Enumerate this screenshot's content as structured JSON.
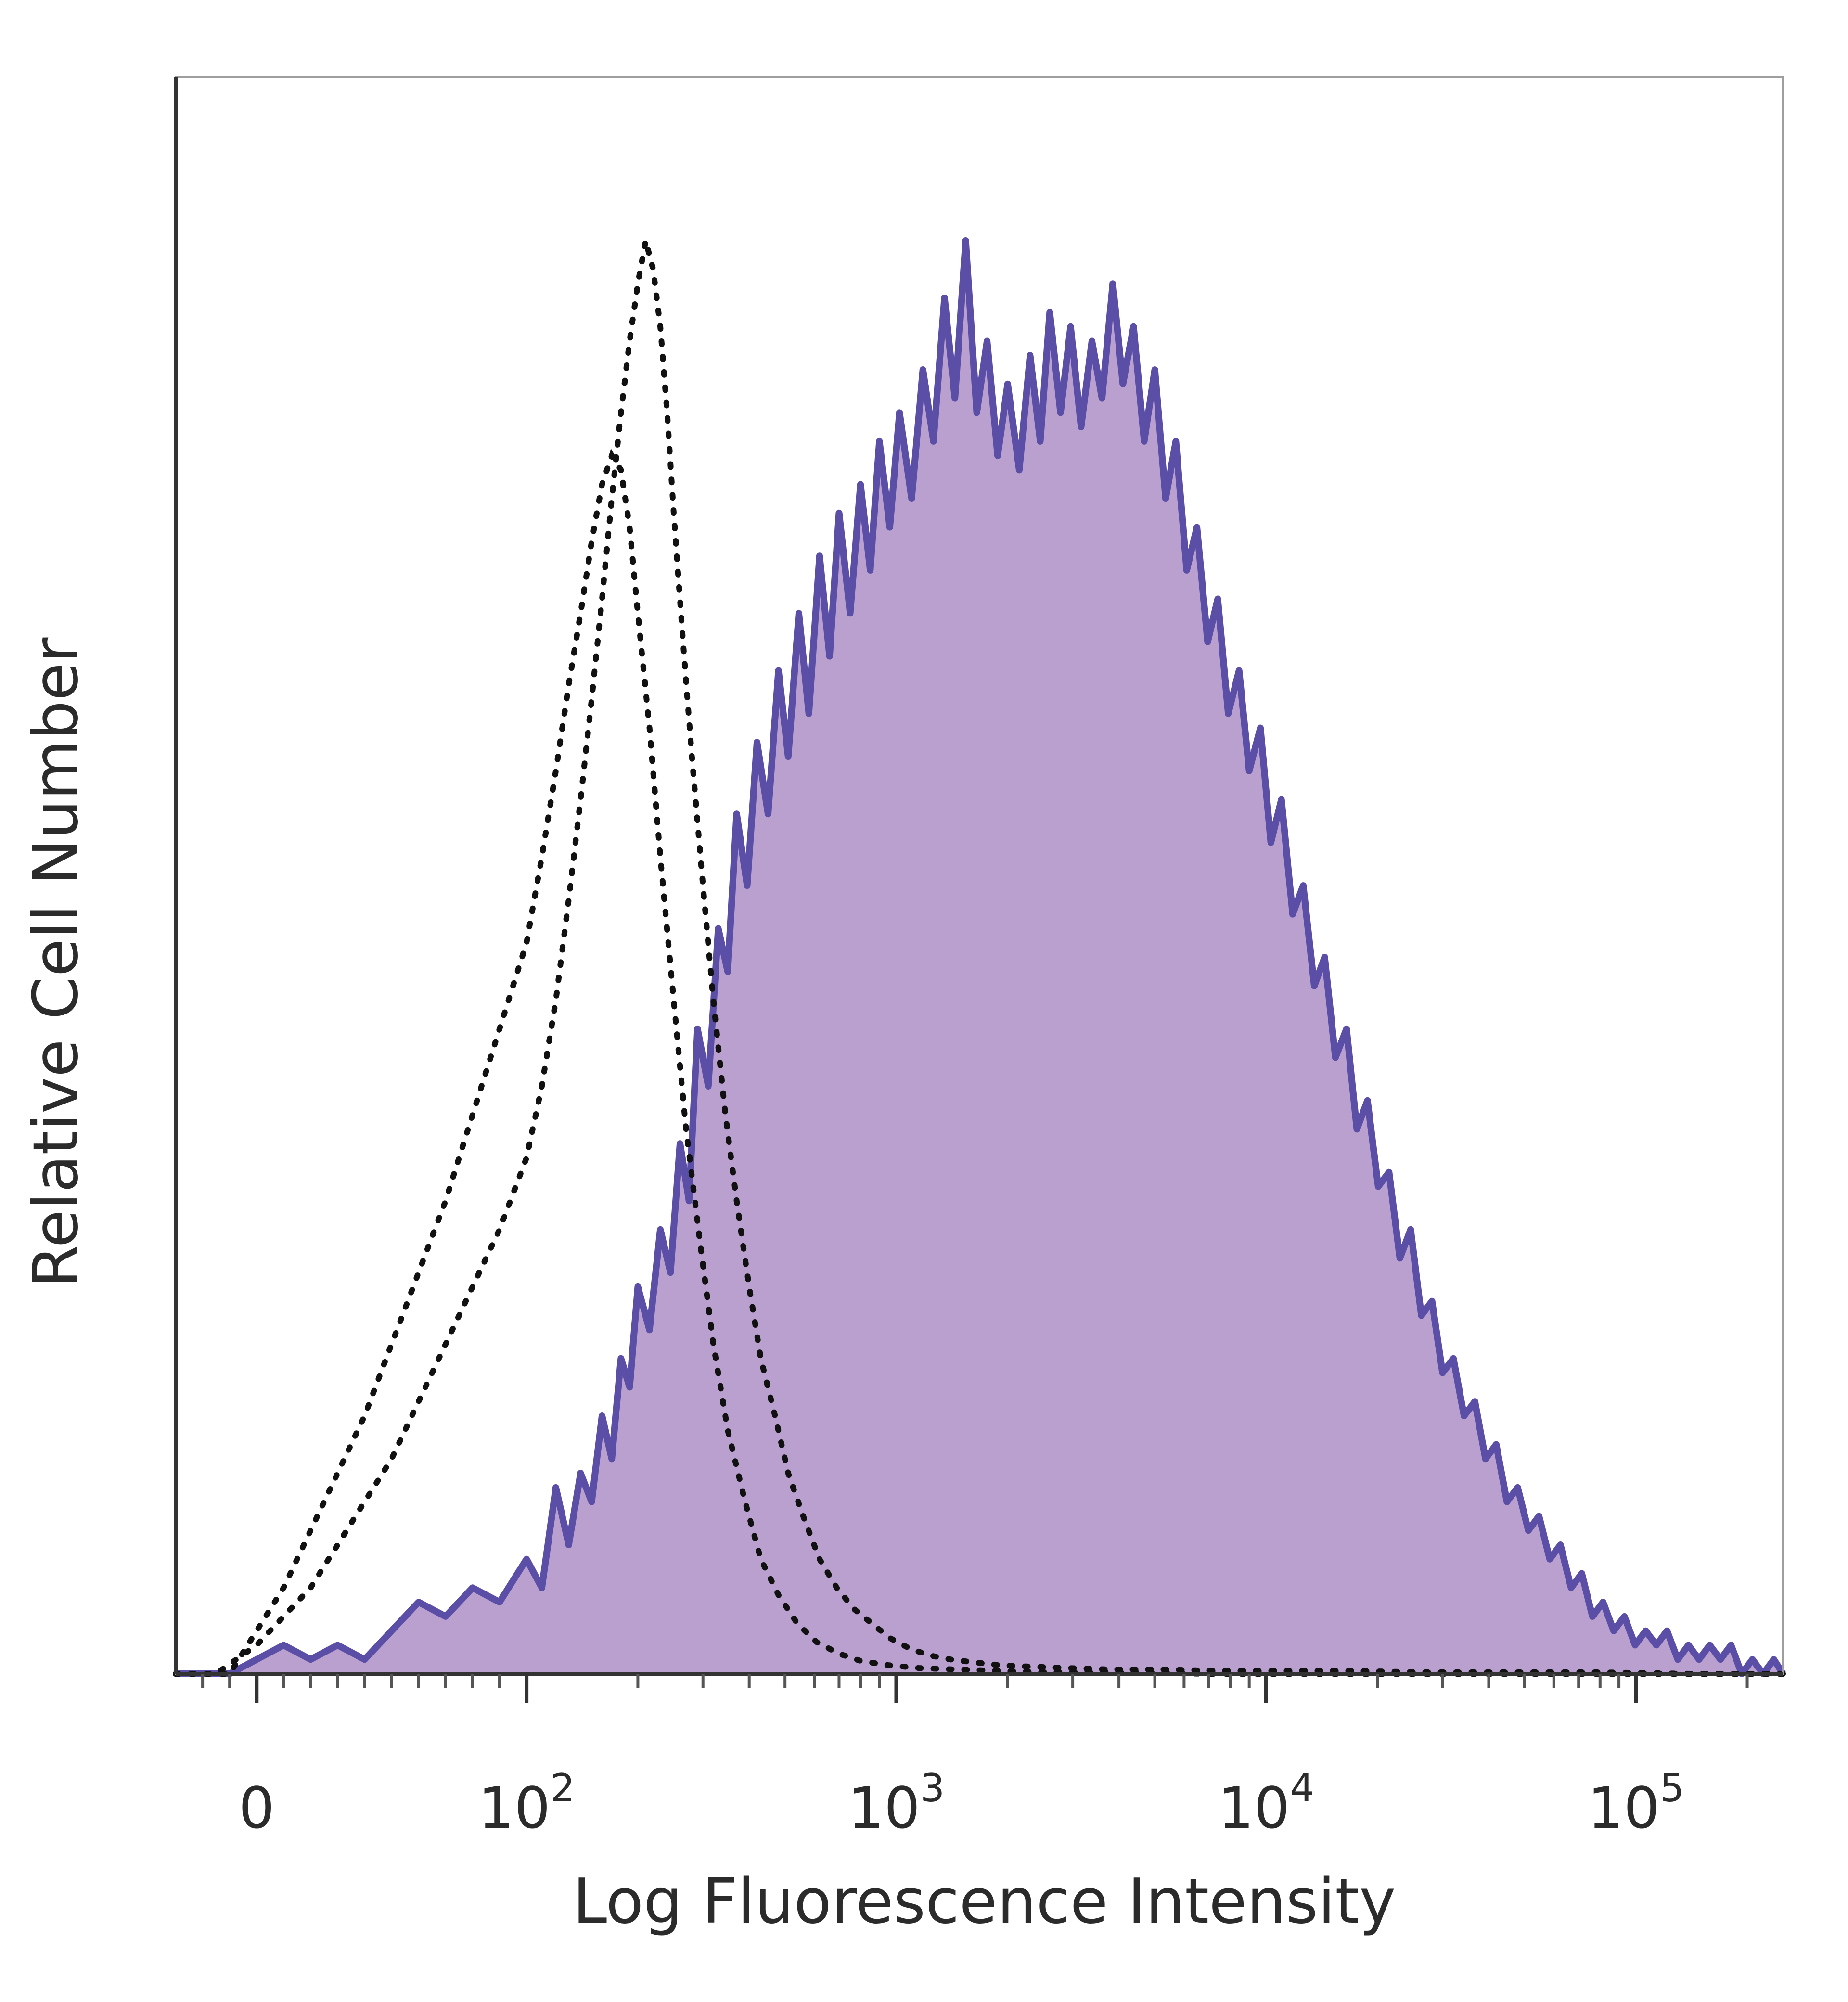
{
  "chart_data": {
    "type": "area",
    "title": "",
    "xlabel": "Log Fluorescence Intensity",
    "ylabel": "Relative Cell Number",
    "x_scale": "biexponential (log)",
    "xlim": [
      -30,
      250000
    ],
    "ylim": [
      0,
      1
    ],
    "x_tick_labels": [
      {
        "value": 0,
        "base": "0",
        "exp": ""
      },
      {
        "value": 100,
        "base": "10",
        "exp": "2"
      },
      {
        "value": 1000,
        "base": "10",
        "exp": "3"
      },
      {
        "value": 10000,
        "base": "10",
        "exp": "4"
      },
      {
        "value": 100000,
        "base": "10",
        "exp": "5"
      }
    ],
    "grid": false,
    "legend": "none",
    "series": [
      {
        "style": "filled",
        "line_color": "#5a4ea6",
        "fill_color": "#b9a0cf",
        "points": [
          [
            -30,
            0.0
          ],
          [
            -10,
            0.0
          ],
          [
            0,
            0.01
          ],
          [
            10,
            0.02
          ],
          [
            20,
            0.01
          ],
          [
            30,
            0.02
          ],
          [
            40,
            0.01
          ],
          [
            50,
            0.03
          ],
          [
            60,
            0.05
          ],
          [
            70,
            0.04
          ],
          [
            80,
            0.06
          ],
          [
            90,
            0.05
          ],
          [
            100,
            0.08
          ],
          [
            110,
            0.06
          ],
          [
            120,
            0.13
          ],
          [
            130,
            0.09
          ],
          [
            140,
            0.14
          ],
          [
            150,
            0.12
          ],
          [
            160,
            0.18
          ],
          [
            170,
            0.15
          ],
          [
            180,
            0.22
          ],
          [
            190,
            0.2
          ],
          [
            200,
            0.27
          ],
          [
            215,
            0.24
          ],
          [
            230,
            0.31
          ],
          [
            245,
            0.28
          ],
          [
            260,
            0.37
          ],
          [
            275,
            0.33
          ],
          [
            290,
            0.45
          ],
          [
            310,
            0.41
          ],
          [
            330,
            0.52
          ],
          [
            350,
            0.49
          ],
          [
            370,
            0.6
          ],
          [
            395,
            0.55
          ],
          [
            420,
            0.65
          ],
          [
            450,
            0.6
          ],
          [
            480,
            0.7
          ],
          [
            510,
            0.64
          ],
          [
            545,
            0.74
          ],
          [
            580,
            0.67
          ],
          [
            620,
            0.78
          ],
          [
            660,
            0.71
          ],
          [
            700,
            0.81
          ],
          [
            750,
            0.74
          ],
          [
            800,
            0.83
          ],
          [
            850,
            0.77
          ],
          [
            900,
            0.86
          ],
          [
            960,
            0.8
          ],
          [
            1020,
            0.88
          ],
          [
            1100,
            0.82
          ],
          [
            1180,
            0.91
          ],
          [
            1260,
            0.86
          ],
          [
            1350,
            0.96
          ],
          [
            1440,
            0.89
          ],
          [
            1540,
            1.0
          ],
          [
            1650,
            0.88
          ],
          [
            1760,
            0.93
          ],
          [
            1880,
            0.85
          ],
          [
            2000,
            0.9
          ],
          [
            2150,
            0.84
          ],
          [
            2300,
            0.92
          ],
          [
            2450,
            0.86
          ],
          [
            2600,
            0.95
          ],
          [
            2780,
            0.88
          ],
          [
            2960,
            0.94
          ],
          [
            3160,
            0.87
          ],
          [
            3380,
            0.93
          ],
          [
            3600,
            0.89
          ],
          [
            3850,
            0.97
          ],
          [
            4100,
            0.9
          ],
          [
            4380,
            0.94
          ],
          [
            4680,
            0.86
          ],
          [
            5000,
            0.91
          ],
          [
            5350,
            0.82
          ],
          [
            5700,
            0.86
          ],
          [
            6100,
            0.77
          ],
          [
            6500,
            0.8
          ],
          [
            6950,
            0.72
          ],
          [
            7400,
            0.75
          ],
          [
            7900,
            0.67
          ],
          [
            8450,
            0.7
          ],
          [
            9000,
            0.63
          ],
          [
            9650,
            0.66
          ],
          [
            10300,
            0.58
          ],
          [
            11000,
            0.61
          ],
          [
            11800,
            0.53
          ],
          [
            12600,
            0.55
          ],
          [
            13500,
            0.48
          ],
          [
            14400,
            0.5
          ],
          [
            15400,
            0.43
          ],
          [
            16500,
            0.45
          ],
          [
            17600,
            0.38
          ],
          [
            18800,
            0.4
          ],
          [
            20100,
            0.34
          ],
          [
            21500,
            0.35
          ],
          [
            23000,
            0.29
          ],
          [
            24600,
            0.31
          ],
          [
            26300,
            0.25
          ],
          [
            28100,
            0.26
          ],
          [
            30000,
            0.21
          ],
          [
            32100,
            0.22
          ],
          [
            34300,
            0.18
          ],
          [
            36700,
            0.19
          ],
          [
            39200,
            0.15
          ],
          [
            41900,
            0.16
          ],
          [
            44800,
            0.12
          ],
          [
            47900,
            0.13
          ],
          [
            51200,
            0.1
          ],
          [
            54700,
            0.11
          ],
          [
            58500,
            0.08
          ],
          [
            62500,
            0.09
          ],
          [
            66800,
            0.06
          ],
          [
            71400,
            0.07
          ],
          [
            76300,
            0.04
          ],
          [
            81500,
            0.05
          ],
          [
            87100,
            0.03
          ],
          [
            93100,
            0.04
          ],
          [
            99500,
            0.02
          ],
          [
            106300,
            0.03
          ],
          [
            113600,
            0.02
          ],
          [
            121400,
            0.03
          ],
          [
            129800,
            0.01
          ],
          [
            138700,
            0.02
          ],
          [
            148200,
            0.01
          ],
          [
            158400,
            0.02
          ],
          [
            169300,
            0.01
          ],
          [
            180900,
            0.02
          ],
          [
            193300,
            0.0
          ],
          [
            206600,
            0.01
          ],
          [
            220800,
            0.0
          ],
          [
            236000,
            0.01
          ],
          [
            250000,
            0.0
          ]
        ]
      },
      {
        "style": "dotted",
        "line_color": "#111111",
        "points": [
          [
            -30,
            0.0
          ],
          [
            -15,
            0.0
          ],
          [
            0,
            0.02
          ],
          [
            10,
            0.04
          ],
          [
            20,
            0.06
          ],
          [
            30,
            0.09
          ],
          [
            40,
            0.12
          ],
          [
            50,
            0.15
          ],
          [
            60,
            0.19
          ],
          [
            70,
            0.23
          ],
          [
            80,
            0.27
          ],
          [
            90,
            0.31
          ],
          [
            100,
            0.36
          ],
          [
            110,
            0.41
          ],
          [
            120,
            0.47
          ],
          [
            130,
            0.54
          ],
          [
            140,
            0.61
          ],
          [
            150,
            0.68
          ],
          [
            160,
            0.75
          ],
          [
            170,
            0.82
          ],
          [
            180,
            0.88
          ],
          [
            190,
            0.93
          ],
          [
            200,
            0.97
          ],
          [
            210,
            1.0
          ],
          [
            220,
            0.98
          ],
          [
            230,
            0.94
          ],
          [
            240,
            0.88
          ],
          [
            250,
            0.81
          ],
          [
            265,
            0.72
          ],
          [
            280,
            0.64
          ],
          [
            300,
            0.55
          ],
          [
            320,
            0.47
          ],
          [
            345,
            0.39
          ],
          [
            370,
            0.33
          ],
          [
            400,
            0.27
          ],
          [
            430,
            0.22
          ],
          [
            470,
            0.18
          ],
          [
            510,
            0.14
          ],
          [
            560,
            0.11
          ],
          [
            620,
            0.08
          ],
          [
            690,
            0.06
          ],
          [
            770,
            0.045
          ],
          [
            860,
            0.035
          ],
          [
            960,
            0.025
          ],
          [
            1080,
            0.018
          ],
          [
            1220,
            0.013
          ],
          [
            1400,
            0.01
          ],
          [
            1620,
            0.008
          ],
          [
            1900,
            0.006
          ],
          [
            2300,
            0.005
          ],
          [
            2900,
            0.004
          ],
          [
            3800,
            0.003
          ],
          [
            5200,
            0.003
          ],
          [
            7500,
            0.002
          ],
          [
            11000,
            0.002
          ],
          [
            17000,
            0.002
          ],
          [
            27000,
            0.001
          ],
          [
            45000,
            0.001
          ],
          [
            80000,
            0.001
          ],
          [
            140000,
            0.0
          ],
          [
            250000,
            0.0
          ]
        ]
      },
      {
        "style": "dotted",
        "line_color": "#111111",
        "points": [
          [
            -30,
            0.0
          ],
          [
            -10,
            0.0
          ],
          [
            0,
            0.03
          ],
          [
            10,
            0.06
          ],
          [
            20,
            0.1
          ],
          [
            30,
            0.14
          ],
          [
            40,
            0.18
          ],
          [
            50,
            0.23
          ],
          [
            60,
            0.28
          ],
          [
            70,
            0.33
          ],
          [
            80,
            0.39
          ],
          [
            90,
            0.45
          ],
          [
            100,
            0.51
          ],
          [
            110,
            0.57
          ],
          [
            120,
            0.63
          ],
          [
            130,
            0.69
          ],
          [
            140,
            0.74
          ],
          [
            150,
            0.79
          ],
          [
            160,
            0.83
          ],
          [
            170,
            0.85
          ],
          [
            180,
            0.84
          ],
          [
            190,
            0.8
          ],
          [
            200,
            0.74
          ],
          [
            215,
            0.66
          ],
          [
            230,
            0.57
          ],
          [
            250,
            0.47
          ],
          [
            270,
            0.38
          ],
          [
            295,
            0.3
          ],
          [
            320,
            0.23
          ],
          [
            350,
            0.17
          ],
          [
            390,
            0.12
          ],
          [
            430,
            0.08
          ],
          [
            480,
            0.055
          ],
          [
            540,
            0.035
          ],
          [
            610,
            0.022
          ],
          [
            700,
            0.014
          ],
          [
            800,
            0.009
          ],
          [
            950,
            0.006
          ],
          [
            1150,
            0.004
          ],
          [
            1450,
            0.003
          ],
          [
            1900,
            0.002
          ],
          [
            2600,
            0.001
          ],
          [
            4000,
            0.001
          ],
          [
            7000,
            0.0
          ],
          [
            15000,
            0.0
          ],
          [
            250000,
            0.0
          ]
        ]
      }
    ]
  }
}
